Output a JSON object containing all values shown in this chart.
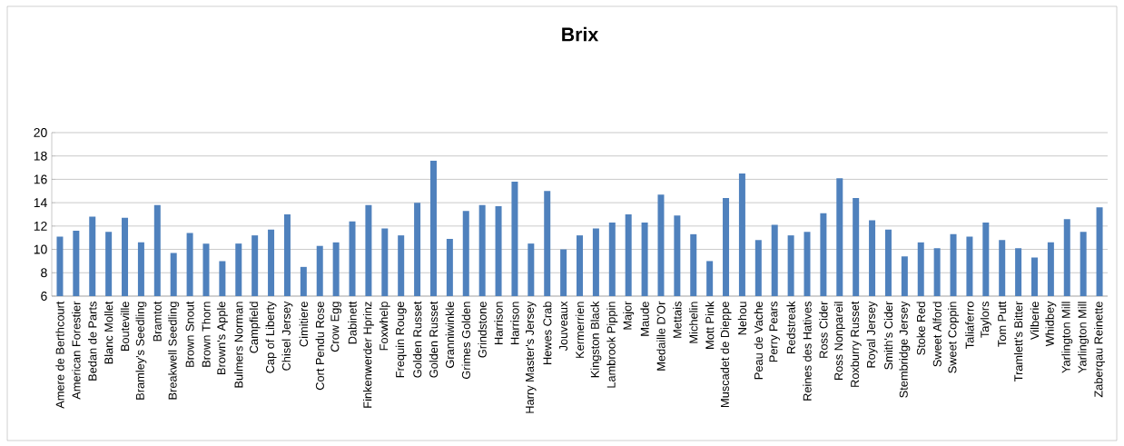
{
  "chart_data": {
    "type": "bar",
    "title": "Brix",
    "categories": [
      "Amere de Berthcourt",
      "American Forestier",
      "Bedan de Parts",
      "Blanc Mollet",
      "Bouteville",
      "Bramley's Seedling",
      "Bramtot",
      "Breakwell Seedling",
      "Brown Snout",
      "Brown Thorn",
      "Brown's Apple",
      "Bulmers Norman",
      "Campfield",
      "Cap of Liberty",
      "Chisel Jersey",
      "Cimitiere",
      "Cort Pendu Rose",
      "Crow Egg",
      "Dabinett",
      "Finkenwerder Hprinz",
      "Foxwhelp",
      "Frequin Rouge",
      "Golden Russet",
      "Golden Russet",
      "Granniwinkle",
      "Grimes Golden",
      "Grindstone",
      "Harrison",
      "Harrison",
      "Harry Master's Jersey",
      "Hewes Crab",
      "Jouveaux",
      "Kermerrien",
      "Kingston Black",
      "Lambrook Pippin",
      "Major",
      "Maude",
      "Medaille D'Or",
      "Mettais",
      "Michelin",
      "Mott Pink",
      "Muscadet de Dieppe",
      "Nehou",
      "Peau de Vache",
      "Perry Pears",
      "Redstreak",
      "Reines des Hatives",
      "Ross Cider",
      "Ross Nonpareil",
      "Roxburry Russet",
      "Royal Jersey",
      "Smith's Cider",
      "Stembridge Jersey",
      "Stoke Red",
      "Sweet Alford",
      "Sweet Coppin",
      "Taliaferro",
      "Taylors",
      "Tom Putt",
      "Tramlett's Bitter",
      "Vilberie",
      "Whidbey",
      "Yarlington Mill",
      "Yarlington Mill",
      "Zaberqau Reinette"
    ],
    "values": [
      11.1,
      11.6,
      12.8,
      11.5,
      12.7,
      10.6,
      13.8,
      9.7,
      11.4,
      10.5,
      9.0,
      10.5,
      11.2,
      11.7,
      13.0,
      8.5,
      10.3,
      10.6,
      12.4,
      13.8,
      11.8,
      11.2,
      14.0,
      17.6,
      10.9,
      13.3,
      13.8,
      13.7,
      15.8,
      10.5,
      15.0,
      10.0,
      11.2,
      11.8,
      12.3,
      13.0,
      12.3,
      14.7,
      12.9,
      11.3,
      9.0,
      14.4,
      16.5,
      10.8,
      12.1,
      11.2,
      11.5,
      13.1,
      16.1,
      14.4,
      12.5,
      11.7,
      9.4,
      10.6,
      10.1,
      11.3,
      11.1,
      12.3,
      10.8,
      10.1,
      9.3,
      10.6,
      12.6,
      11.5,
      13.6
    ],
    "color": "#4f81bd",
    "ylim": [
      6,
      20
    ],
    "yticks": [
      6,
      8,
      10,
      12,
      14,
      16,
      18,
      20
    ],
    "grid": "y"
  }
}
